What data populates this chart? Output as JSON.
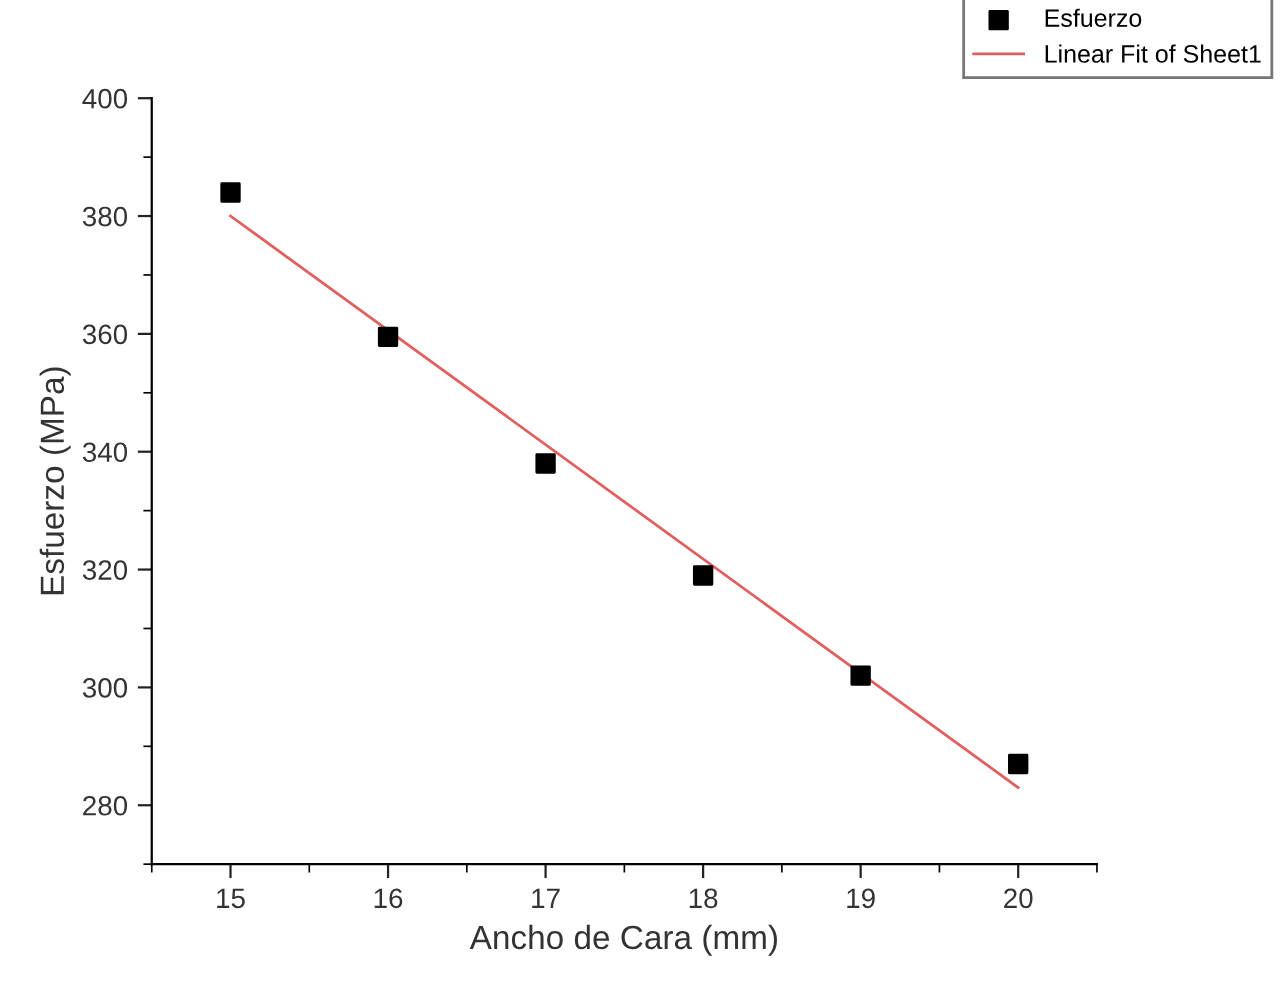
{
  "chart_data": {
    "type": "scatter",
    "xlabel": "Ancho de Cara (mm)",
    "ylabel": "Esfuerzo (MPa)",
    "x": [
      15,
      16,
      17,
      18,
      19,
      20
    ],
    "series": [
      {
        "name": "Esfuerzo",
        "color": "#000000",
        "marker": "square",
        "values": [
          384,
          359.5,
          338,
          319,
          302,
          287
        ]
      },
      {
        "name": "Linear Fit of Sheet1",
        "type": "line",
        "color": "#e06060",
        "marker": "none",
        "line_style": "solid",
        "x": [
          15,
          20
        ],
        "values": [
          380,
          283
        ]
      }
    ],
    "xlim": [
      14.5,
      20.5
    ],
    "ylim": [
      270,
      400
    ],
    "xticks": [
      {
        "value": 14.5,
        "label": null
      },
      15,
      {
        "value": 15.5,
        "label": null
      },
      16,
      {
        "value": 16.5,
        "label": null
      },
      17,
      {
        "value": 17.5,
        "label": null
      },
      18,
      {
        "value": 18.5,
        "label": null
      },
      19,
      {
        "value": 19.5,
        "label": null
      },
      20,
      {
        "value": 20.5,
        "label": null
      }
    ],
    "yticks": [
      {
        "value": 270,
        "label": null
      },
      280,
      {
        "value": 290,
        "label": null
      },
      300,
      {
        "value": 310,
        "label": null
      },
      320,
      {
        "value": 330,
        "label": null
      },
      340,
      {
        "value": 350,
        "label": null
      },
      360,
      {
        "value": 370,
        "label": null
      },
      380,
      {
        "value": 390,
        "label": null
      },
      400
    ],
    "grid": false,
    "legend": "top right"
  }
}
